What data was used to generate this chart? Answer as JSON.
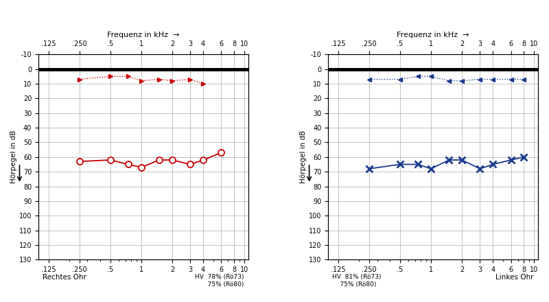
{
  "freq_ticks": [
    0.125,
    0.25,
    0.5,
    1.0,
    2.0,
    3.0,
    4.0,
    6.0,
    8.0,
    10.0
  ],
  "freq_labels": [
    ".125",
    ".250",
    ".5",
    "1",
    "2",
    "3",
    "4",
    "6",
    "8",
    "10"
  ],
  "yticks": [
    -10,
    0,
    10,
    20,
    30,
    40,
    50,
    60,
    70,
    80,
    90,
    100,
    110,
    120,
    130
  ],
  "ylabel": "Hörpegel in dB",
  "xlabel_top": "Frequenz in kHz  →",
  "right_bc_freqs": [
    0.25,
    0.5,
    0.75,
    1.0,
    1.5,
    2.0,
    3.0,
    4.0,
    6.0
  ],
  "right_bc_values": [
    63,
    62,
    65,
    67,
    62,
    62,
    65,
    62,
    57
  ],
  "right_ac_freqs": [
    0.25,
    0.5,
    0.75,
    1.0,
    1.5,
    2.0,
    3.0,
    4.0
  ],
  "right_ac_values": [
    7,
    5,
    5,
    8,
    7,
    8,
    7,
    10
  ],
  "left_bc_freqs": [
    0.25,
    0.5,
    0.75,
    1.0,
    1.5,
    2.0,
    3.0,
    4.0,
    6.0,
    8.0
  ],
  "left_bc_values": [
    68,
    65,
    65,
    68,
    62,
    62,
    68,
    65,
    62,
    60
  ],
  "left_ac_freqs": [
    0.25,
    0.5,
    0.75,
    1.0,
    1.5,
    2.0,
    3.0,
    4.0,
    6.0,
    8.0
  ],
  "left_ac_values": [
    7,
    7,
    5,
    5,
    8,
    8,
    7,
    7,
    7,
    7
  ],
  "right_color": "#cc0000",
  "left_color": "#1a3a8c",
  "grid_color": "#aaaaaa",
  "right_bottom_left": "Rechtes Ohr",
  "right_bottom_right_line1": "HV  78% (Rö73)",
  "right_bottom_right_line2": "    75% (Rö80)",
  "left_bottom_left_line1": "HV  81% (Rö73)",
  "left_bottom_left_line2": "    75% (Rö80)",
  "left_bottom_right": "Linkes Ohr"
}
